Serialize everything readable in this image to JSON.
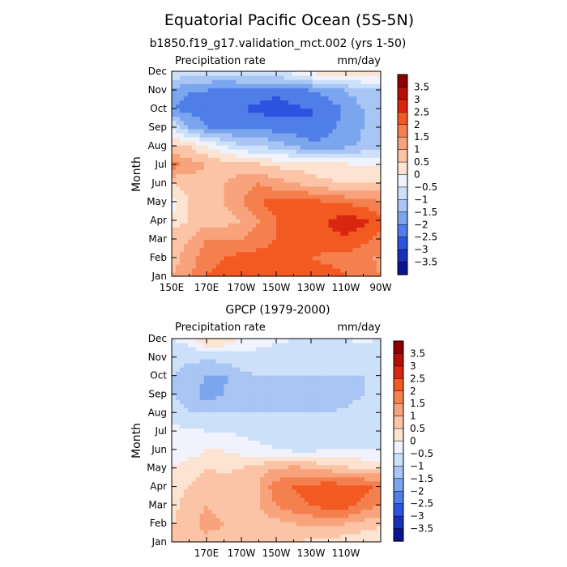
{
  "title": "Equatorial Pacific Ocean (5S-5N)",
  "colorbar": {
    "labels": [
      "3.5",
      "3",
      "2.5",
      "2",
      "1.5",
      "1",
      "0.5",
      "0",
      "−0.5",
      "−1",
      "−1.5",
      "−2",
      "−2.5",
      "−3",
      "−3.5"
    ],
    "colors": [
      "#8b0000",
      "#b41008",
      "#d9260e",
      "#f25a22",
      "#f5804f",
      "#f8a37c",
      "#fbc4a6",
      "#fde3d1",
      "#f0f3fd",
      "#cde0fa",
      "#a8c5f4",
      "#7ba6ee",
      "#4f7ee8",
      "#2c53e0",
      "#1830b8",
      "#0c1590"
    ]
  },
  "chart_data": [
    {
      "type": "heatmap",
      "title": "b1850.f19_g17.validation_mct.002 (yrs 1-50)",
      "left_label": "Precipitation rate",
      "right_label": "mm/day",
      "xlabel": "",
      "ylabel": "Month",
      "x_ticks": [
        "150E",
        "170E",
        "170W",
        "150W",
        "130W",
        "110W",
        "90W"
      ],
      "xlim": [
        150,
        270
      ],
      "y_ticks": [
        "Jan",
        "Feb",
        "Mar",
        "Apr",
        "May",
        "Jun",
        "Jul",
        "Aug",
        "Sep",
        "Oct",
        "Nov",
        "Dec"
      ],
      "x_nodes": [
        150,
        160,
        170,
        180,
        190,
        200,
        210,
        220,
        230,
        240,
        250,
        260,
        270
      ],
      "values": [
        [
          1.0,
          1.5,
          2.0,
          2.2,
          2.4,
          2.5,
          2.5,
          2.5,
          2.4,
          2.3,
          2.0,
          1.8,
          1.5
        ],
        [
          0.8,
          1.2,
          1.8,
          2.0,
          2.2,
          2.2,
          2.2,
          2.2,
          2.0,
          1.8,
          1.8,
          1.6,
          1.4
        ],
        [
          0.8,
          1.0,
          1.5,
          1.5,
          1.5,
          1.8,
          2.0,
          2.2,
          2.3,
          2.4,
          2.4,
          2.2,
          1.8
        ],
        [
          0.2,
          0.5,
          0.8,
          0.8,
          1.0,
          1.5,
          2.0,
          2.2,
          2.3,
          2.5,
          2.8,
          2.6,
          2.2
        ],
        [
          -0.3,
          0.5,
          0.8,
          1.0,
          1.5,
          2.0,
          2.2,
          2.2,
          2.2,
          2.0,
          1.9,
          1.8,
          1.5
        ],
        [
          0.5,
          0.8,
          0.8,
          1.0,
          1.2,
          1.5,
          1.2,
          1.0,
          0.8,
          0.6,
          0.5,
          0.5,
          0.5
        ],
        [
          1.8,
          1.2,
          1.0,
          0.8,
          0.8,
          0.6,
          0.4,
          0.3,
          0.2,
          0.1,
          0.1,
          0.0,
          0.0
        ],
        [
          0.5,
          0.5,
          0.0,
          -0.5,
          -1.0,
          -1.0,
          -1.2,
          -1.5,
          -1.8,
          -1.8,
          -1.6,
          -1.4,
          -1.2
        ],
        [
          -0.5,
          -1.5,
          -2.0,
          -2.0,
          -2.0,
          -2.2,
          -2.2,
          -2.3,
          -2.5,
          -2.2,
          -1.8,
          -1.5,
          -1.2
        ],
        [
          -2.0,
          -2.2,
          -2.3,
          -2.5,
          -2.5,
          -2.6,
          -2.7,
          -2.6,
          -2.5,
          -2.3,
          -1.9,
          -1.5,
          -1.2
        ],
        [
          -1.5,
          -2.0,
          -2.0,
          -2.2,
          -2.2,
          -2.3,
          -2.4,
          -2.2,
          -2.0,
          -1.8,
          -1.5,
          -1.2,
          -1.0
        ],
        [
          -0.5,
          -0.8,
          -0.8,
          -0.8,
          -0.6,
          -0.5,
          -0.4,
          -0.3,
          0.2,
          0.4,
          0.5,
          0.4,
          0.2
        ]
      ]
    },
    {
      "type": "heatmap",
      "title": "GPCP (1979-2000)",
      "left_label": "Precipitation rate",
      "right_label": "mm/day",
      "xlabel": "",
      "ylabel": "Month",
      "x_ticks": [
        "170E",
        "170W",
        "150W",
        "130W",
        "110W"
      ],
      "xlim": [
        150,
        270
      ],
      "y_ticks": [
        "Jan",
        "Feb",
        "Mar",
        "Apr",
        "May",
        "Jun",
        "Jul",
        "Aug",
        "Sep",
        "Oct",
        "Nov",
        "Dec"
      ],
      "x_nodes": [
        150,
        160,
        170,
        180,
        190,
        200,
        210,
        220,
        230,
        240,
        250,
        260,
        270
      ],
      "values": [
        [
          0.5,
          0.6,
          0.8,
          0.8,
          0.6,
          0.5,
          0.5,
          0.5,
          0.4,
          0.3,
          0.2,
          0.1,
          0.0
        ],
        [
          0.5,
          0.8,
          1.2,
          1.0,
          0.8,
          0.7,
          0.8,
          1.0,
          1.1,
          1.2,
          1.0,
          0.8,
          0.6
        ],
        [
          0.3,
          0.8,
          1.0,
          0.8,
          0.8,
          1.0,
          1.5,
          1.8,
          2.0,
          2.2,
          2.2,
          1.8,
          1.5
        ],
        [
          0.2,
          0.5,
          0.8,
          0.7,
          0.8,
          1.0,
          1.8,
          2.0,
          2.2,
          2.3,
          2.3,
          2.2,
          1.9
        ],
        [
          0.0,
          0.3,
          0.5,
          0.4,
          0.5,
          0.8,
          1.0,
          1.2,
          1.0,
          0.8,
          0.6,
          0.5,
          0.5
        ],
        [
          -0.3,
          -0.3,
          0.0,
          0.0,
          -0.2,
          -0.3,
          -0.5,
          -0.6,
          -0.6,
          -0.5,
          -0.5,
          -0.5,
          -0.5
        ],
        [
          -0.3,
          -0.4,
          -0.5,
          -0.5,
          -0.6,
          -0.8,
          -0.8,
          -0.8,
          -0.8,
          -0.8,
          -0.8,
          -0.7,
          -0.6
        ],
        [
          -0.8,
          -1.0,
          -1.0,
          -1.0,
          -1.0,
          -1.0,
          -1.0,
          -1.0,
          -1.0,
          -1.0,
          -0.9,
          -0.8,
          -0.8
        ],
        [
          -1.0,
          -1.2,
          -1.8,
          -1.5,
          -1.1,
          -1.0,
          -1.1,
          -1.2,
          -1.3,
          -1.3,
          -1.2,
          -1.0,
          -1.0
        ],
        [
          -1.0,
          -1.2,
          -1.5,
          -1.6,
          -1.1,
          -1.0,
          -1.0,
          -1.0,
          -1.0,
          -1.0,
          -1.0,
          -1.0,
          -0.9
        ],
        [
          -0.8,
          -0.9,
          -0.9,
          -0.8,
          -0.7,
          -0.7,
          -0.8,
          -0.8,
          -0.9,
          -0.9,
          -0.9,
          -0.8,
          -0.8
        ],
        [
          -0.5,
          -0.3,
          0.6,
          0.4,
          0.0,
          -0.3,
          -0.4,
          -0.5,
          -0.6,
          -0.6,
          -0.5,
          -0.4,
          -0.5
        ]
      ]
    }
  ]
}
